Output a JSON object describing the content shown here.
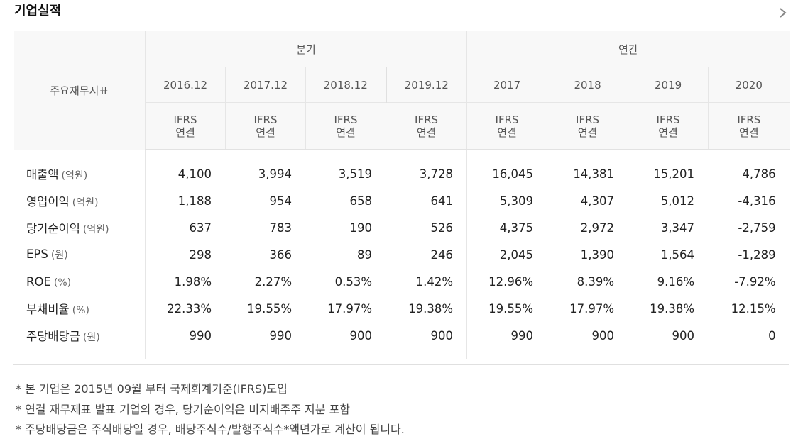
{
  "title": "기업실적",
  "header": {
    "indicator_label": "주요재무지표",
    "quarterly_label": "분기",
    "annual_label": "연간",
    "periods": [
      "2016.12",
      "2017.12",
      "2018.12",
      "2019.12",
      "2017",
      "2018",
      "2019",
      "2020"
    ],
    "ifrs_top": "IFRS",
    "ifrs_bottom": "연결"
  },
  "rows": [
    {
      "label": "매출액",
      "unit": "(억원)",
      "values": [
        "4,100",
        "3,994",
        "3,519",
        "3,728",
        "16,045",
        "14,381",
        "15,201",
        "4,786"
      ]
    },
    {
      "label": "영업이익",
      "unit": "(억원)",
      "values": [
        "1,188",
        "954",
        "658",
        "641",
        "5,309",
        "4,307",
        "5,012",
        "-4,316"
      ]
    },
    {
      "label": "당기순이익",
      "unit": "(억원)",
      "values": [
        "637",
        "783",
        "190",
        "526",
        "4,375",
        "2,972",
        "3,347",
        "-2,759"
      ]
    },
    {
      "label": "EPS",
      "unit": "(원)",
      "values": [
        "298",
        "366",
        "89",
        "246",
        "2,045",
        "1,390",
        "1,564",
        "-1,289"
      ]
    },
    {
      "label": "ROE",
      "unit": "(%)",
      "values": [
        "1.98%",
        "2.27%",
        "0.53%",
        "1.42%",
        "12.96%",
        "8.39%",
        "9.16%",
        "-7.92%"
      ]
    },
    {
      "label": "부채비율",
      "unit": "(%)",
      "values": [
        "22.33%",
        "19.55%",
        "17.97%",
        "19.38%",
        "19.55%",
        "17.97%",
        "19.38%",
        "12.15%"
      ]
    },
    {
      "label": "주당배당금",
      "unit": "(원)",
      "values": [
        "990",
        "990",
        "900",
        "900",
        "990",
        "900",
        "900",
        "0"
      ]
    }
  ],
  "notes": [
    "* 본 기업은 2015년 09월 부터 국제회계기준(IFRS)도입",
    "* 연결 재무제표 발표 기업의 경우, 당기순이익은 비지배주주 지분 포함",
    "* 주당배당금은 주식배당일 경우, 배당주식수/발행주식수*액면가로 계산이 됩니다."
  ],
  "icons": {
    "more": "chevron-right-icon"
  },
  "colors": {
    "header_bg": "#f8f8f8",
    "border": "#e6e6e6",
    "text": "#222222"
  }
}
